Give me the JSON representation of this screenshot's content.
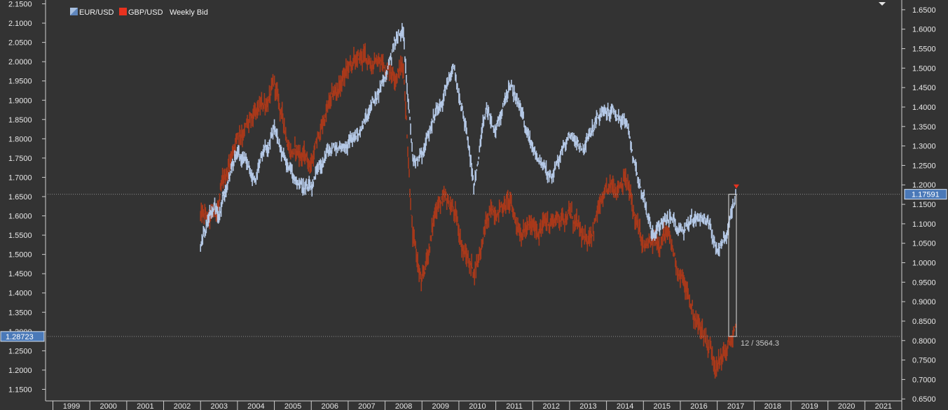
{
  "chart_data": {
    "type": "line",
    "subtitle": "Weekly Bid",
    "x": [
      "2003-01",
      "2003-04",
      "2003-07",
      "2004-01",
      "2004-06",
      "2005-01",
      "2005-06",
      "2006-01",
      "2006-06",
      "2007-01",
      "2007-06",
      "2008-01",
      "2008-04",
      "2008-07",
      "2008-10",
      "2009-01",
      "2009-06",
      "2009-11",
      "2010-03",
      "2010-06",
      "2010-10",
      "2011-01",
      "2011-05",
      "2011-08",
      "2012-01",
      "2012-07",
      "2013-01",
      "2013-06",
      "2013-10",
      "2014-03",
      "2014-07",
      "2014-10",
      "2015-01",
      "2015-04",
      "2015-08",
      "2016-01",
      "2016-06",
      "2016-09",
      "2017-01",
      "2017-04",
      "2017-07"
    ],
    "series": [
      {
        "name": "EUR/USD",
        "color": "#a8c0e0",
        "axis": "right",
        "values": [
          1.05,
          1.12,
          1.14,
          1.28,
          1.21,
          1.33,
          1.23,
          1.18,
          1.28,
          1.31,
          1.35,
          1.47,
          1.57,
          1.59,
          1.27,
          1.29,
          1.4,
          1.5,
          1.36,
          1.2,
          1.39,
          1.33,
          1.45,
          1.42,
          1.29,
          1.22,
          1.33,
          1.3,
          1.37,
          1.39,
          1.36,
          1.26,
          1.17,
          1.07,
          1.12,
          1.09,
          1.12,
          1.12,
          1.04,
          1.07,
          1.17
        ]
      },
      {
        "name": "GBP/USD",
        "color": "#e0431f",
        "axis": "left",
        "values": [
          1.6,
          1.58,
          1.63,
          1.82,
          1.84,
          1.93,
          1.78,
          1.74,
          1.87,
          1.98,
          2.01,
          1.99,
          1.98,
          1.99,
          1.55,
          1.41,
          1.64,
          1.62,
          1.5,
          1.46,
          1.58,
          1.62,
          1.64,
          1.58,
          1.56,
          1.59,
          1.61,
          1.52,
          1.61,
          1.67,
          1.71,
          1.6,
          1.51,
          1.52,
          1.56,
          1.45,
          1.33,
          1.29,
          1.22,
          1.25,
          1.29
        ]
      }
    ],
    "y_left": {
      "min": 1.12,
      "max": 2.16,
      "ticks": [
        "1.1500",
        "1.2000",
        "1.2500",
        "1.3000",
        "1.3500",
        "1.4000",
        "1.4500",
        "1.5000",
        "1.5500",
        "1.6000",
        "1.6500",
        "1.7000",
        "1.7500",
        "1.8000",
        "1.8500",
        "1.9000",
        "1.9500",
        "2.0000",
        "2.0500",
        "2.1000",
        "2.1500"
      ]
    },
    "y_right": {
      "min": 0.645,
      "max": 1.675,
      "ticks": [
        "0.6500",
        "0.7000",
        "0.7500",
        "0.8000",
        "0.8500",
        "0.9000",
        "0.9500",
        "1.0000",
        "1.0500",
        "1.1000",
        "1.1500",
        "1.2000",
        "1.2500",
        "1.3000",
        "1.3500",
        "1.4000",
        "1.4500",
        "1.5000",
        "1.5500",
        "1.6000",
        "1.6500"
      ]
    },
    "x_axis": {
      "start": 1998.8,
      "end": 2022.0,
      "years": [
        "1999",
        "2000",
        "2001",
        "2002",
        "2003",
        "2004",
        "2005",
        "2006",
        "2007",
        "2008",
        "2009",
        "2010",
        "2011",
        "2012",
        "2013",
        "2014",
        "2015",
        "2016",
        "2017",
        "2018",
        "2019",
        "2020",
        "2021"
      ]
    },
    "last_values": {
      "left_tag": "1.28723",
      "left_value": 1.28723,
      "right_tag": "1.17591",
      "right_value": 1.17591
    },
    "measure_annotation": "12 / 3564.3",
    "legend": {
      "position": "top-left"
    },
    "grid": false,
    "colors": {
      "background": "#333333",
      "axis_tag": "#4a79b8",
      "marker": "#e8321f"
    }
  }
}
